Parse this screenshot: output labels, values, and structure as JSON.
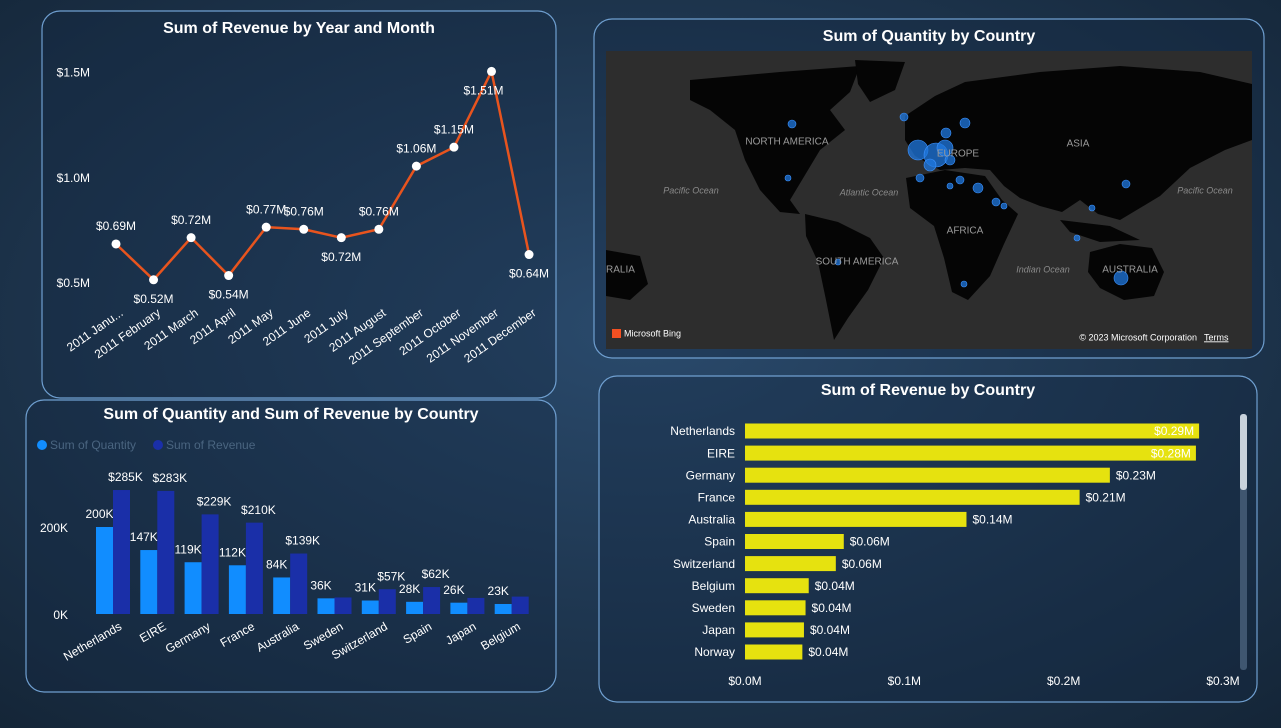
{
  "chart_data": [
    {
      "type": "line",
      "title": "Sum of Revenue by Year and Month",
      "categories": [
        "2011 Janu...",
        "2011 February",
        "2011 March",
        "2011 April",
        "2011 May",
        "2011 June",
        "2011 July",
        "2011 August",
        "2011 September",
        "2011 October",
        "2011 November",
        "2011 December"
      ],
      "values": [
        0.69,
        0.52,
        0.72,
        0.54,
        0.77,
        0.76,
        0.72,
        0.76,
        1.06,
        1.15,
        1.51,
        0.64
      ],
      "value_labels": [
        "$0.69M",
        "$0.52M",
        "$0.72M",
        "$0.54M",
        "$0.77M",
        "$0.76M",
        "$0.72M",
        "$0.76M",
        "$1.06M",
        "$1.15M",
        "$1.51M",
        "$0.64M"
      ],
      "color": "#e8541e",
      "ylim": [
        0.45,
        1.55
      ],
      "yticks": [
        {
          "value": 0.5,
          "label": "$0.5M"
        },
        {
          "value": 1.0,
          "label": "$1.0M"
        },
        {
          "value": 1.5,
          "label": "$1.5M"
        }
      ]
    },
    {
      "type": "map",
      "title": "Sum of Quantity by Country",
      "labels": [
        "NORTH AMERICA",
        "EUROPE",
        "ASIA",
        "AFRICA",
        "SOUTH AMERICA",
        "AUSTRALIA",
        "Pacific Ocean",
        "Atlantic Ocean",
        "Indian Ocean",
        "Pacific Ocean",
        "RALIA"
      ],
      "logo": "Microsoft Bing",
      "attribution": "© 2023 Microsoft Corporation",
      "terms": "Terms"
    },
    {
      "type": "grouped_bar",
      "title": "Sum of Quantity and Sum of Revenue by Country",
      "categories": [
        "Netherlands",
        "EIRE",
        "Germany",
        "France",
        "Australia",
        "Sweden",
        "Switzerland",
        "Spain",
        "Japan",
        "Belgium"
      ],
      "series": [
        {
          "name": "Sum of Quantity",
          "color": "#118dff",
          "values": [
            200,
            147,
            119,
            112,
            84,
            36,
            31,
            28,
            26,
            23
          ],
          "value_labels": [
            "200K",
            "147K",
            "119K",
            "112K",
            "84K",
            "36K",
            "31K",
            "28K",
            "26K",
            "23K"
          ]
        },
        {
          "name": "Sum of Revenue",
          "color": "#1a2fa8",
          "values": [
            285,
            283,
            229,
            210,
            139,
            38,
            57,
            62,
            37,
            40
          ],
          "value_labels": [
            "$285K",
            "$283K",
            "$229K",
            "$210K",
            "$139K",
            null,
            "$57K",
            "$62K",
            null,
            null
          ]
        }
      ],
      "ylim": [
        0,
        300
      ],
      "yticks": [
        {
          "value": 0,
          "label": "0K"
        },
        {
          "value": 200,
          "label": "200K"
        }
      ]
    },
    {
      "type": "hbar",
      "title": "Sum of Revenue by Country",
      "categories": [
        "Netherlands",
        "EIRE",
        "Germany",
        "France",
        "Australia",
        "Spain",
        "Switzerland",
        "Belgium",
        "Sweden",
        "Japan",
        "Norway"
      ],
      "values": [
        0.285,
        0.283,
        0.229,
        0.21,
        0.139,
        0.062,
        0.057,
        0.04,
        0.038,
        0.037,
        0.036
      ],
      "value_labels": [
        "$0.29M",
        "$0.28M",
        "$0.23M",
        "$0.21M",
        "$0.14M",
        "$0.06M",
        "$0.06M",
        "$0.04M",
        "$0.04M",
        "$0.04M",
        "$0.04M"
      ],
      "color": "#e6e20f",
      "xlim": [
        0,
        0.3
      ],
      "xticks": [
        {
          "value": 0,
          "label": "$0.0M"
        },
        {
          "value": 0.1,
          "label": "$0.1M"
        },
        {
          "value": 0.2,
          "label": "$0.2M"
        },
        {
          "value": 0.3,
          "label": "$0.3M"
        }
      ]
    }
  ]
}
